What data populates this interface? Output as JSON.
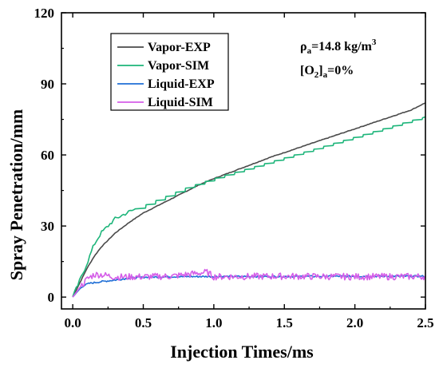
{
  "chart_data": {
    "type": "line",
    "title": "",
    "xlabel": "Injection Times/ms",
    "ylabel": "Spray Penetration/mm",
    "xlim": [
      -0.08,
      2.5
    ],
    "ylim": [
      -5,
      120
    ],
    "xticks": [
      0.0,
      0.5,
      1.0,
      1.5,
      2.0,
      2.5
    ],
    "xtick_labels": [
      "0.0",
      "0.5",
      "1.0",
      "1.5",
      "2.0",
      "2.5"
    ],
    "yticks": [
      0,
      30,
      60,
      90,
      120
    ],
    "ytick_labels": [
      "0",
      "30",
      "60",
      "90",
      "120"
    ],
    "grid": false,
    "legend_position": "top-left",
    "annotation": {
      "rho_symbol": "ρ",
      "rho_sub": "a",
      "rho_value": "=14.8 kg/m",
      "rho_sup": "3",
      "o2_bracket_open": "[O",
      "o2_sub": "2",
      "o2_bracket_close": "]",
      "o2_sub2": "a",
      "o2_value": "=0%"
    },
    "series": [
      {
        "name": "Vapor-EXP",
        "color": "#4a4a4a",
        "style": "smooth",
        "x": [
          0.0,
          0.05,
          0.1,
          0.15,
          0.2,
          0.3,
          0.4,
          0.5,
          0.6,
          0.7,
          0.8,
          0.9,
          1.0,
          1.2,
          1.4,
          1.6,
          1.8,
          2.0,
          2.2,
          2.4,
          2.5
        ],
        "y": [
          0,
          6,
          12,
          17,
          21,
          27,
          31.5,
          35.5,
          38.5,
          41.5,
          44.5,
          47.5,
          50,
          54.5,
          59,
          63,
          67,
          71,
          75,
          79,
          82
        ]
      },
      {
        "name": "Vapor-SIM",
        "color": "#1db57a",
        "style": "stepped",
        "x": [
          0.0,
          0.05,
          0.1,
          0.15,
          0.2,
          0.25,
          0.3,
          0.4,
          0.5,
          0.6,
          0.7,
          0.8,
          0.9,
          1.0,
          1.2,
          1.4,
          1.6,
          1.8,
          2.0,
          2.2,
          2.4,
          2.5
        ],
        "y": [
          0,
          7,
          14,
          22,
          27,
          30,
          33,
          36,
          38.5,
          41,
          43.5,
          46,
          48,
          50,
          53.5,
          57,
          60.5,
          64,
          67.5,
          71,
          74.5,
          76
        ]
      },
      {
        "name": "Liquid-EXP",
        "color": "#1f6fd6",
        "style": "flat-noisy",
        "x": [
          0.0,
          0.05,
          0.08,
          0.12,
          0.2,
          0.3,
          0.4,
          0.5,
          0.7,
          1.0,
          1.5,
          2.0,
          2.5
        ],
        "y": [
          0,
          3.5,
          5,
          5.8,
          6.5,
          7.2,
          8,
          8.4,
          8.6,
          8.7,
          8.7,
          8.8,
          8.8
        ]
      },
      {
        "name": "Liquid-SIM",
        "color": "#d55ee8",
        "style": "noisy",
        "x": [
          0.0,
          0.05,
          0.1,
          0.15,
          0.2,
          0.3,
          0.5,
          0.7,
          0.95,
          1.0,
          1.5,
          2.0,
          2.5
        ],
        "y": [
          0,
          4,
          7.5,
          9.5,
          9.5,
          8.5,
          8.6,
          8.8,
          10.5,
          8.6,
          8.8,
          8.6,
          8.7
        ]
      }
    ]
  }
}
